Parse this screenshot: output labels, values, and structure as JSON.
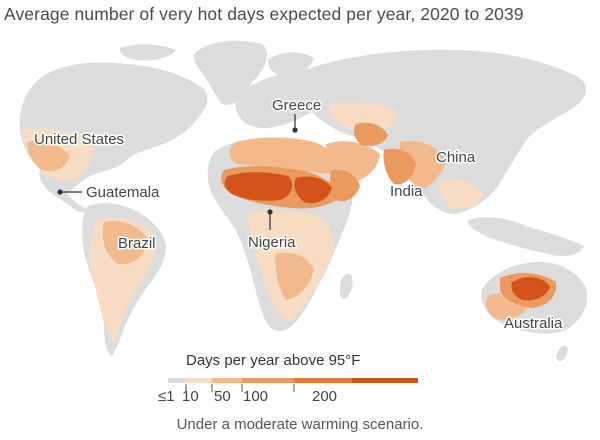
{
  "title": "Average number of very hot days expected per year, 2020 to 2039",
  "labels": {
    "united_states": "United States",
    "guatemala": "Guatemala",
    "brazil": "Brazil",
    "greece": "Greece",
    "nigeria": "Nigeria",
    "india": "India",
    "china": "China",
    "australia": "Australia"
  },
  "legend": {
    "title": "Days per year above 95°F",
    "ticks": [
      "≤1",
      "10",
      "50",
      "100",
      "200"
    ],
    "colors": {
      "no_data": "#dcdcdc",
      "scale": [
        "#f7dcc3",
        "#f2b98c",
        "#eb9a5f",
        "#e47a36",
        "#d4531a"
      ]
    }
  },
  "note": "Under a moderate warming scenario."
}
